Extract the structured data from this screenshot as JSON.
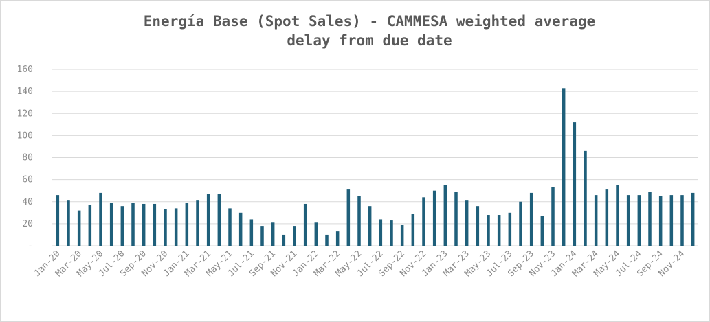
{
  "chart_data": {
    "type": "bar",
    "title_line1": "Energía Base (Spot Sales) - CAMMESA weighted average",
    "title_line2": "delay from due date",
    "xlabel": "",
    "ylabel": "",
    "ylim": [
      0,
      160
    ],
    "y_ticks": [
      "-",
      "20",
      "40",
      "60",
      "80",
      "100",
      "120",
      "140",
      "160"
    ],
    "grid": true,
    "bar_color": "#1f5f7a",
    "categories": [
      "Jan-20",
      "Feb-20",
      "Mar-20",
      "Apr-20",
      "May-20",
      "Jun-20",
      "Jul-20",
      "Aug-20",
      "Sep-20",
      "Oct-20",
      "Nov-20",
      "Dec-20",
      "Jan-21",
      "Feb-21",
      "Mar-21",
      "Apr-21",
      "May-21",
      "Jun-21",
      "Jul-21",
      "Aug-21",
      "Sep-21",
      "Oct-21",
      "Nov-21",
      "Dec-21",
      "Jan-22",
      "Feb-22",
      "Mar-22",
      "Apr-22",
      "May-22",
      "Jun-22",
      "Jul-22",
      "Aug-22",
      "Sep-22",
      "Oct-22",
      "Nov-22",
      "Dec-22",
      "Jan-23",
      "Feb-23",
      "Mar-23",
      "Apr-23",
      "May-23",
      "Jun-23",
      "Jul-23",
      "Aug-23",
      "Sep-23",
      "Oct-23",
      "Nov-23",
      "Dec-23",
      "Jan-24",
      "Feb-24",
      "Mar-24",
      "Apr-24",
      "May-24",
      "Jun-24",
      "Jul-24",
      "Aug-24",
      "Sep-24",
      "Oct-24",
      "Nov-24",
      "Dec-24"
    ],
    "x_tick_labels": [
      "Jan-20",
      "Mar-20",
      "May-20",
      "Jul-20",
      "Sep-20",
      "Nov-20",
      "Jan-21",
      "Mar-21",
      "May-21",
      "Jul-21",
      "Sep-21",
      "Nov-21",
      "Jan-22",
      "Mar-22",
      "May-22",
      "Jul-22",
      "Sep-22",
      "Nov-22",
      "Jan-23",
      "Mar-23",
      "May-23",
      "Jul-23",
      "Sep-23",
      "Nov-23",
      "Jan-24",
      "Mar-24",
      "May-24",
      "Jul-24",
      "Sep-24",
      "Nov-24"
    ],
    "values": [
      46,
      41,
      32,
      37,
      48,
      39,
      36,
      39,
      38,
      38,
      33,
      34,
      39,
      41,
      47,
      47,
      34,
      30,
      24,
      18,
      21,
      10,
      18,
      38,
      21,
      10,
      13,
      51,
      45,
      36,
      24,
      23,
      19,
      29,
      44,
      50,
      55,
      49,
      41,
      36,
      28,
      28,
      30,
      40,
      48,
      27,
      53,
      143,
      112,
      86,
      46,
      51,
      55,
      46,
      46,
      49,
      45,
      46,
      46,
      48
    ]
  }
}
